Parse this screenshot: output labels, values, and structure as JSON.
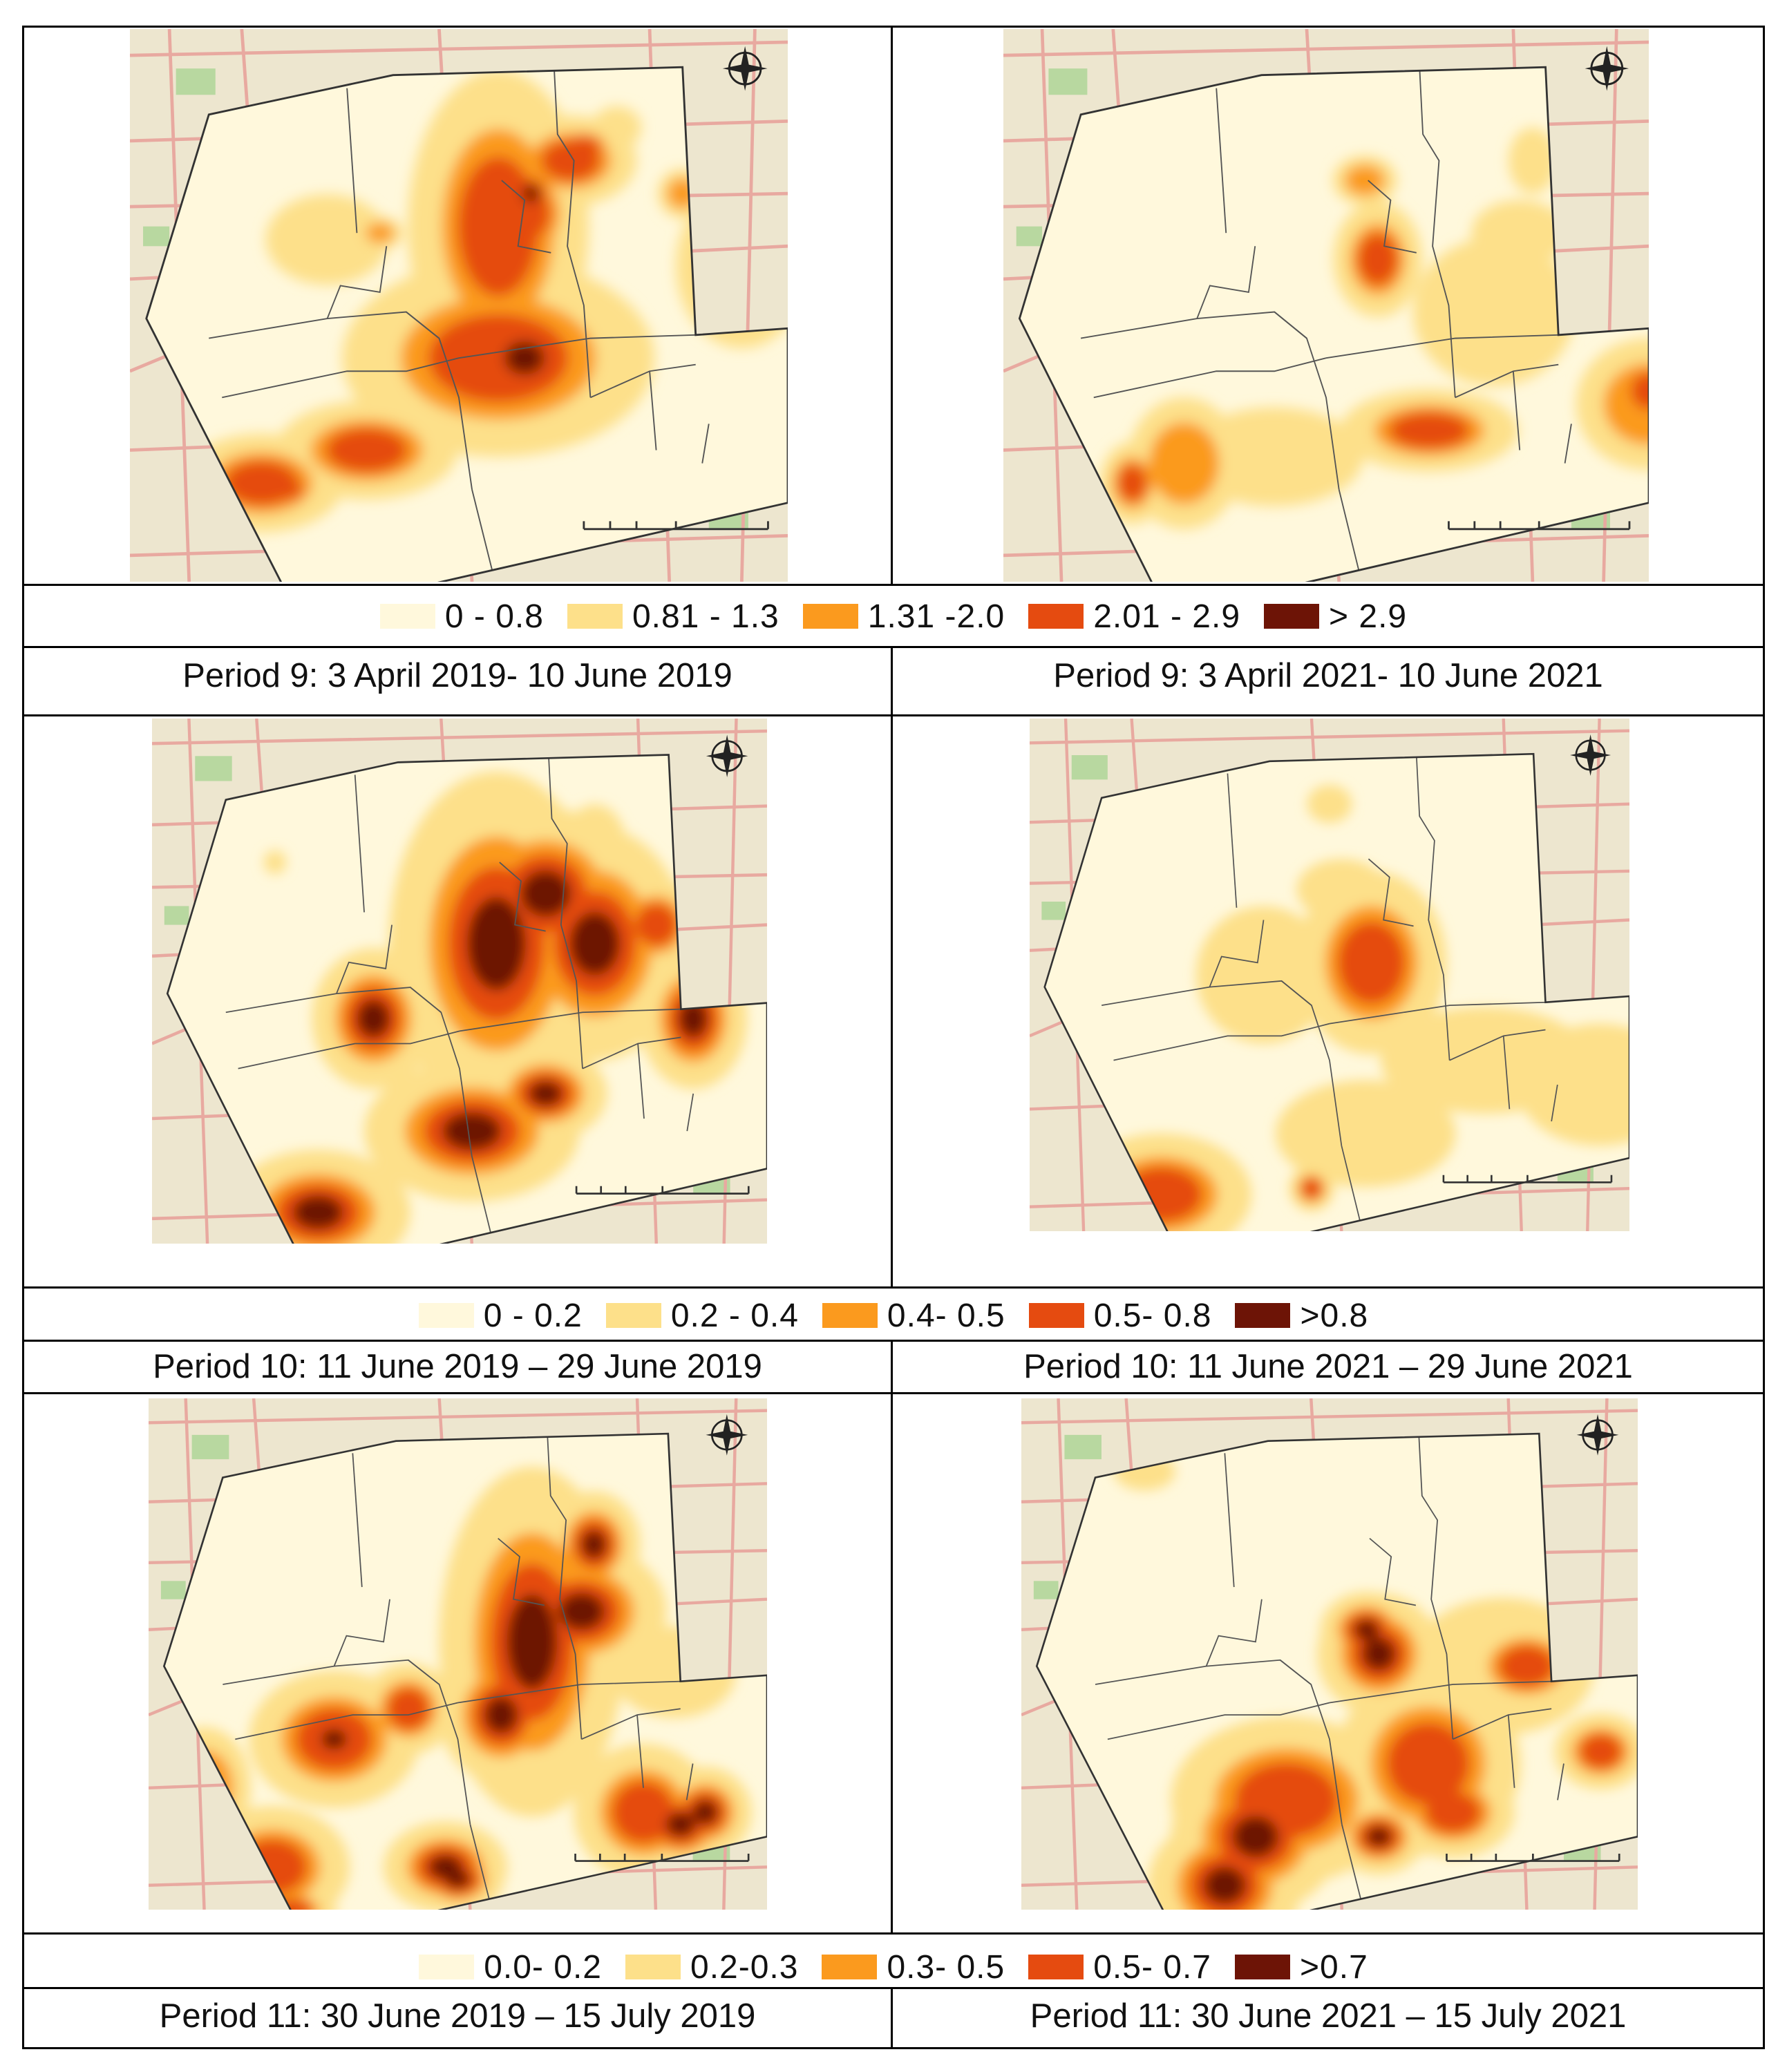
{
  "legends": [
    {
      "items": [
        {
          "label": "0 - 0.8",
          "color": "#fff8dc"
        },
        {
          "label": "0.81 - 1.3",
          "color": "#fde08a"
        },
        {
          "label": "1.31 -2.0",
          "color": "#fb9a1e"
        },
        {
          "label": "2.01 - 2.9",
          "color": "#e54b10"
        },
        {
          "label": "> 2.9",
          "color": "#6d1406"
        }
      ]
    },
    {
      "items": [
        {
          "label": "0 - 0.2",
          "color": "#fff8dc"
        },
        {
          "label": "0.2 - 0.4",
          "color": "#fde08a"
        },
        {
          "label": "0.4- 0.5",
          "color": "#fb9a1e"
        },
        {
          "label": "0.5- 0.8",
          "color": "#e54b10"
        },
        {
          "label": ">0.8",
          "color": "#6d1406"
        }
      ]
    },
    {
      "items": [
        {
          "label": "0.0- 0.2",
          "color": "#fff8dc"
        },
        {
          "label": "0.2-0.3",
          "color": "#fde08a"
        },
        {
          "label": "0.3- 0.5",
          "color": "#fb9a1e"
        },
        {
          "label": "0.5- 0.7",
          "color": "#e54b10"
        },
        {
          "label": ">0.7",
          "color": "#6d1406"
        }
      ]
    }
  ],
  "captions": {
    "p9_2019": "Period 9: 3 April 2019- 10 June 2019",
    "p9_2021": "Period 9: 3 April 2021- 10 June 2021",
    "p10_2019": "Period 10: 11 June 2019 – 29 June 2019",
    "p10_2021": "Period 10: 11 June 2021 – 29 June 2021",
    "p11_2019": "Period 11: 30 June 2019 – 15 July 2019",
    "p11_2021": "Period 11: 30 June 2021 – 15 July 2021"
  },
  "colors": {
    "basemap": "#ede6cf",
    "road": "#e8a9a0",
    "park": "#b8d8a0",
    "boundary": "#555555"
  },
  "icons": {
    "north_arrow": "compass-rose-icon",
    "scale_bar": "scale-bar-icon"
  }
}
